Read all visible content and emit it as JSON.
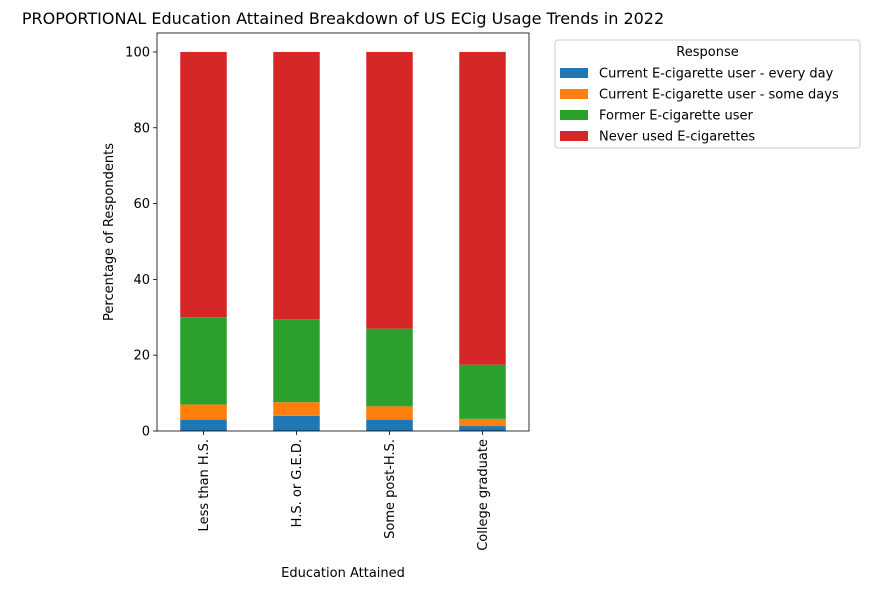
{
  "chart_data": {
    "type": "bar",
    "stacked": true,
    "title": "PROPORTIONAL Education Attained Breakdown of US ECig Usage Trends in 2022",
    "xlabel": "Education Attained",
    "ylabel": "Percentage of Respondents",
    "categories": [
      "Less than H.S.",
      "H.S. or G.E.D.",
      "Some post-H.S.",
      "College graduate"
    ],
    "ylim": [
      0,
      105
    ],
    "yticks": [
      0,
      20,
      40,
      60,
      80,
      100
    ],
    "legend_title": "Response",
    "legend_position": "outside-top-right",
    "series": [
      {
        "name": "Current E-cigarette user - every day",
        "color": "#1f77b4",
        "values": [
          3.0,
          4.0,
          3.0,
          1.3
        ]
      },
      {
        "name": "Current E-cigarette user - some days",
        "color": "#ff7f0e",
        "values": [
          4.0,
          3.6,
          3.5,
          1.9
        ]
      },
      {
        "name": "Former E-cigarette user",
        "color": "#2ca02c",
        "values": [
          23.0,
          21.9,
          20.5,
          14.3
        ]
      },
      {
        "name": "Never used E-cigarettes",
        "color": "#d62728",
        "values": [
          70.0,
          70.5,
          73.0,
          82.5
        ]
      }
    ]
  }
}
